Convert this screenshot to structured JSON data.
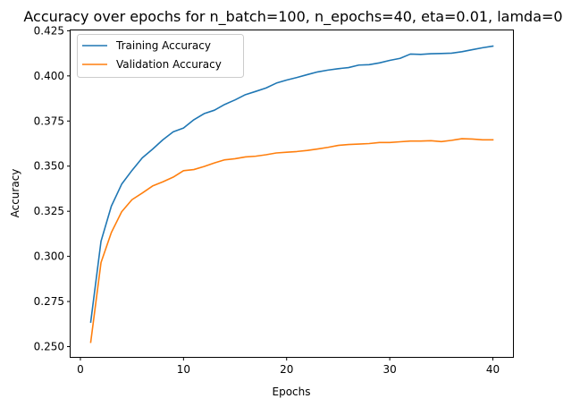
{
  "chart_data": {
    "type": "line",
    "title": "Accuracy over epochs for n_batch=100, n_epochs=40, eta=0.01, lamda=0",
    "xlabel": "Epochs",
    "ylabel": "Accuracy",
    "xlim": [
      -0.95,
      41.95
    ],
    "ylim": [
      0.2443,
      0.4252
    ],
    "xticks": [
      "0",
      "10",
      "20",
      "30",
      "40"
    ],
    "yticks": [
      "0.250",
      "0.275",
      "0.300",
      "0.325",
      "0.350",
      "0.375",
      "0.400",
      "0.425"
    ],
    "grid": false,
    "legend_position": "top-left",
    "x": [
      1,
      2,
      3,
      4,
      5,
      6,
      7,
      8,
      9,
      10,
      11,
      12,
      13,
      14,
      15,
      16,
      17,
      18,
      19,
      20,
      21,
      22,
      23,
      24,
      25,
      26,
      27,
      28,
      29,
      30,
      31,
      32,
      33,
      34,
      35,
      36,
      37,
      38,
      39,
      40
    ],
    "series": [
      {
        "name": "Training Accuracy",
        "color": "#1f77b4",
        "values": [
          0.2636,
          0.3084,
          0.3278,
          0.34,
          0.3476,
          0.3546,
          0.3594,
          0.3646,
          0.369,
          0.3711,
          0.3757,
          0.3791,
          0.381,
          0.3842,
          0.3867,
          0.3896,
          0.3914,
          0.3933,
          0.396,
          0.3977,
          0.3991,
          0.4007,
          0.4022,
          0.4032,
          0.404,
          0.4046,
          0.406,
          0.4062,
          0.4072,
          0.4086,
          0.4097,
          0.4121,
          0.4119,
          0.4123,
          0.4124,
          0.4126,
          0.4134,
          0.4145,
          0.4156,
          0.4165
        ]
      },
      {
        "name": "Validation Accuracy",
        "color": "#ff7f0e",
        "values": [
          0.2524,
          0.2966,
          0.3132,
          0.3247,
          0.3314,
          0.3351,
          0.339,
          0.3413,
          0.3439,
          0.3475,
          0.3481,
          0.3498,
          0.3518,
          0.3535,
          0.3541,
          0.3551,
          0.3555,
          0.3563,
          0.3573,
          0.3577,
          0.3581,
          0.3587,
          0.3595,
          0.3604,
          0.3615,
          0.362,
          0.3622,
          0.3625,
          0.3631,
          0.3631,
          0.3635,
          0.3639,
          0.3639,
          0.3641,
          0.3636,
          0.3643,
          0.3652,
          0.365,
          0.3646,
          0.3646
        ]
      }
    ]
  }
}
